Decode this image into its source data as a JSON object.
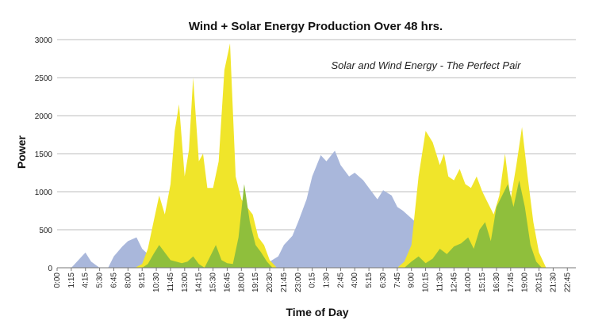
{
  "chart_data": {
    "type": "area",
    "title": "Wind + Solar Energy Production Over 48 hrs.",
    "subtitle": "Solar and Wind Energy - The Perfect Pair",
    "xlabel": "Time of Day",
    "ylabel": "Power",
    "ylim": [
      0,
      3000
    ],
    "yticks": [
      "0",
      "500",
      "1000",
      "1500",
      "2000",
      "2500",
      "3000"
    ],
    "x_tick_labels": [
      "0:00",
      "1:15",
      "4:15",
      "5:30",
      "6:45",
      "8:00",
      "9:15",
      "10:30",
      "11:45",
      "13:00",
      "14:15",
      "15:30",
      "16:45",
      "18:00",
      "19:15",
      "20:30",
      "21:45",
      "23:00",
      "0:15",
      "1:30",
      "2:45",
      "4:00",
      "5:15",
      "6:30",
      "7:45",
      "9:00",
      "10:15",
      "11:30",
      "12:45",
      "14:00",
      "15:15",
      "16:30",
      "17:45",
      "19:00",
      "20:15",
      "21:30",
      "22:45"
    ],
    "grid": true,
    "colors": {
      "wind": "#a9b7db",
      "solar": "#f0e52a",
      "overlap": "#8fbf3c"
    },
    "series": [
      {
        "key": "wind",
        "x": [
          0,
          1,
          2,
          2.4,
          3,
          3.6,
          4,
          4.6,
          5,
          5.6,
          6,
          6.4,
          7,
          7.6,
          8,
          8.6,
          9,
          9.6,
          10,
          10.6,
          11,
          11.6,
          12,
          12.6,
          13,
          13.4,
          14,
          14.6,
          15,
          15.6,
          16,
          16.6,
          17,
          17.6,
          18,
          18.6,
          19,
          19.6,
          20,
          20.6,
          21,
          21.6,
          22,
          22.6,
          23,
          23.6,
          24,
          24.4,
          25,
          25.6,
          26,
          26.6,
          27,
          27.6,
          28,
          28.6,
          29,
          29.6,
          30,
          30.6,
          31,
          31.6,
          32,
          32.6,
          33,
          33.6,
          34,
          34.6,
          35,
          35.6,
          36,
          36.6
        ],
        "y": [
          0,
          0,
          200,
          80,
          0,
          0,
          150,
          280,
          350,
          400,
          250,
          180,
          220,
          150,
          100,
          60,
          120,
          80,
          60,
          40,
          80,
          60,
          50,
          30,
          50,
          40,
          30,
          60,
          80,
          150,
          300,
          420,
          600,
          900,
          1200,
          1480,
          1400,
          1540,
          1350,
          1200,
          1250,
          1150,
          1050,
          900,
          1020,
          950,
          800,
          750,
          650,
          550,
          600,
          480,
          450,
          400,
          600,
          650,
          500,
          450,
          420,
          380,
          300,
          350,
          400,
          280,
          180,
          80,
          0,
          0,
          0,
          0,
          0,
          0
        ]
      },
      {
        "key": "solar",
        "x": [
          0,
          1,
          2,
          3,
          4,
          5,
          5.5,
          6,
          6.4,
          6.8,
          7.2,
          7.6,
          8,
          8.3,
          8.6,
          9,
          9.3,
          9.6,
          10,
          10.3,
          10.6,
          11,
          11.4,
          11.8,
          12.2,
          12.6,
          13,
          13.4,
          13.8,
          14.2,
          14.6,
          15,
          15.5,
          16,
          17,
          18,
          19,
          20,
          21,
          22,
          23,
          24,
          24.5,
          25,
          25.5,
          26,
          26.5,
          27,
          27.3,
          27.6,
          28,
          28.4,
          28.8,
          29.2,
          29.6,
          30,
          30.4,
          30.8,
          31.2,
          31.6,
          32,
          32.4,
          32.8,
          33.2,
          33.6,
          34,
          34.5,
          35,
          36,
          36.6
        ],
        "y": [
          0,
          0,
          0,
          0,
          0,
          0,
          0,
          50,
          250,
          600,
          950,
          700,
          1100,
          1800,
          2150,
          1200,
          1550,
          2500,
          1400,
          1500,
          1050,
          1050,
          1400,
          2600,
          2950,
          1200,
          900,
          800,
          700,
          400,
          300,
          100,
          0,
          0,
          0,
          0,
          0,
          0,
          0,
          0,
          0,
          0,
          80,
          300,
          1200,
          1800,
          1650,
          1350,
          1500,
          1200,
          1150,
          1300,
          1100,
          1050,
          1200,
          1000,
          850,
          700,
          950,
          1500,
          900,
          1350,
          1850,
          1200,
          600,
          200,
          0,
          0,
          0,
          0
        ]
      },
      {
        "key": "overlap",
        "x": [
          0,
          4,
          5,
          6,
          6.4,
          6.8,
          7.2,
          7.6,
          8,
          8.4,
          8.8,
          9.2,
          9.6,
          10,
          10.4,
          10.8,
          11.2,
          11.6,
          12,
          12.4,
          12.8,
          13.2,
          13.6,
          14,
          14.4,
          14.8,
          15.2,
          16,
          24,
          24.5,
          25,
          25.5,
          26,
          26.5,
          27,
          27.5,
          28,
          28.5,
          29,
          29.4,
          29.8,
          30.2,
          30.6,
          31,
          31.4,
          31.8,
          32.2,
          32.6,
          33,
          33.4,
          33.8,
          34.2,
          36.6
        ],
        "y": [
          0,
          0,
          0,
          0,
          50,
          180,
          300,
          200,
          100,
          80,
          60,
          80,
          150,
          50,
          0,
          150,
          300,
          100,
          60,
          50,
          400,
          1100,
          600,
          300,
          200,
          80,
          0,
          0,
          0,
          0,
          80,
          150,
          60,
          120,
          250,
          180,
          280,
          320,
          400,
          250,
          500,
          600,
          350,
          800,
          950,
          1100,
          800,
          1150,
          800,
          300,
          80,
          0,
          0
        ]
      }
    ]
  }
}
